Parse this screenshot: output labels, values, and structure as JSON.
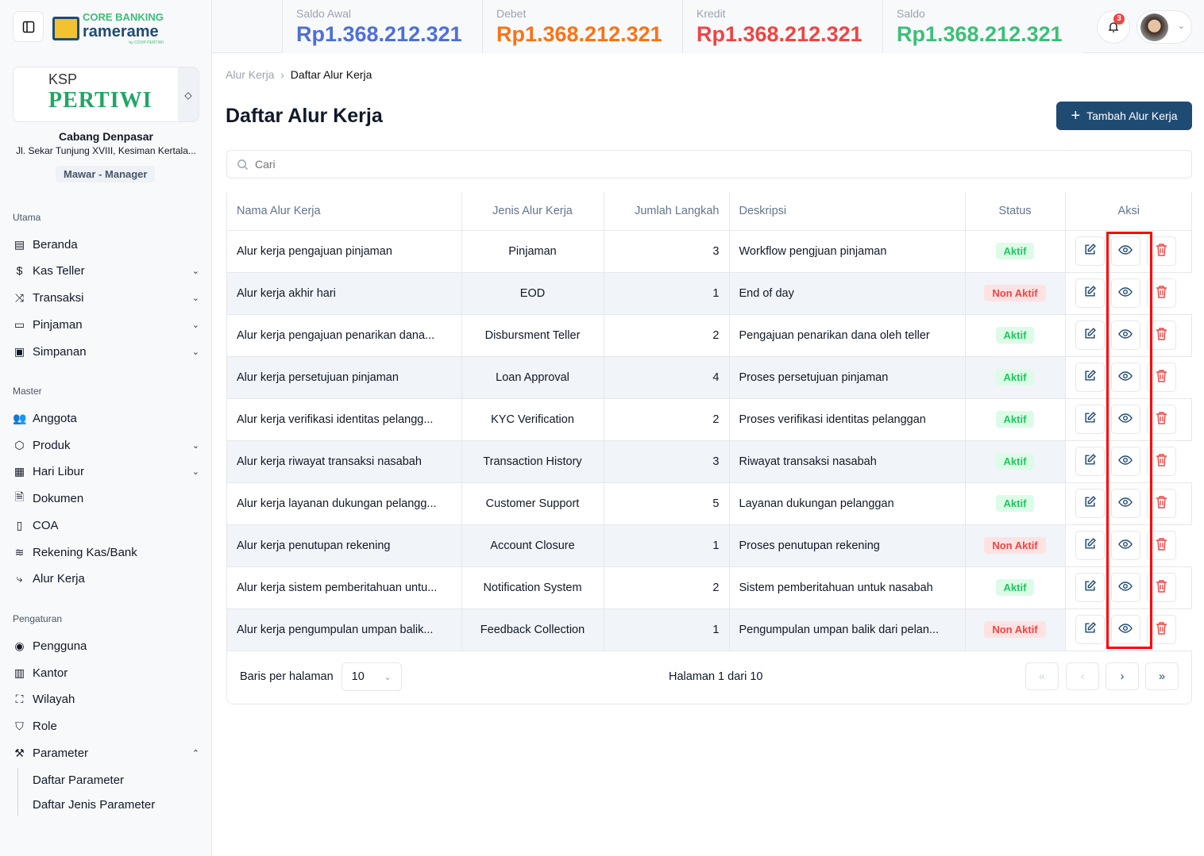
{
  "app": {
    "logo_line1": "CORE BANKING",
    "logo_line2": "ramerame",
    "logo_line3": "by COOP PERTIWI"
  },
  "org": {
    "ksp": "KSP",
    "name": "PERTIWI",
    "branch": "Cabang Denpasar",
    "address": "Jl. Sekar Tunjung XVIII, Kesiman Kertala...",
    "user_role": "Mawar - Manager"
  },
  "sidebar": {
    "sections": [
      "Utama",
      "Master",
      "Pengaturan"
    ],
    "items": [
      {
        "label": "Beranda",
        "icon": "layout-icon"
      },
      {
        "label": "Kas Teller",
        "icon": "dollar-icon"
      },
      {
        "label": "Transaksi",
        "icon": "shuffle-icon"
      },
      {
        "label": "Pinjaman",
        "icon": "card-icon"
      },
      {
        "label": "Simpanan",
        "icon": "archive-icon"
      },
      {
        "label": "Anggota",
        "icon": "users-icon"
      },
      {
        "label": "Produk",
        "icon": "package-icon"
      },
      {
        "label": "Hari Libur",
        "icon": "calendar-icon"
      },
      {
        "label": "Dokumen",
        "icon": "file-icon"
      },
      {
        "label": "COA",
        "icon": "book-icon"
      },
      {
        "label": "Rekening Kas/Bank",
        "icon": "layers-icon"
      },
      {
        "label": "Alur Kerja",
        "icon": "workflow-icon"
      },
      {
        "label": "Pengguna",
        "icon": "user-circle-icon"
      },
      {
        "label": "Kantor",
        "icon": "building-icon"
      },
      {
        "label": "Wilayah",
        "icon": "map-icon"
      },
      {
        "label": "Role",
        "icon": "shield-icon"
      },
      {
        "label": "Parameter",
        "icon": "wrench-icon"
      }
    ],
    "subitems": [
      "Daftar Parameter",
      "Daftar Jenis Parameter"
    ]
  },
  "stats": [
    {
      "label": "Saldo Awal",
      "value": "Rp1.368.212.321",
      "color": "#4f6fd8"
    },
    {
      "label": "Debet",
      "value": "Rp1.368.212.321",
      "color": "#f97316"
    },
    {
      "label": "Kredit",
      "value": "Rp1.368.212.321",
      "color": "#ef4444"
    },
    {
      "label": "Saldo",
      "value": "Rp1.368.212.321",
      "color": "#3cbf78"
    }
  ],
  "notifications": {
    "count": "3"
  },
  "breadcrumb": {
    "parent": "Alur Kerja",
    "current": "Daftar Alur Kerja"
  },
  "page": {
    "title": "Daftar Alur Kerja",
    "add_label": "Tambah Alur Kerja",
    "search_placeholder": "Cari"
  },
  "table": {
    "headers": [
      "Nama Alur Kerja",
      "Jenis Alur Kerja",
      "Jumlah Langkah",
      "Deskripsi",
      "Status",
      "Aksi"
    ],
    "rows": [
      [
        "Alur kerja pengajuan pinjaman",
        "Pinjaman",
        "3",
        "Workflow pengjuan pinjaman",
        "Aktif"
      ],
      [
        "Alur kerja akhir hari",
        "EOD",
        "1",
        "End of day",
        "Non Aktif"
      ],
      [
        "Alur kerja pengajuan penarikan dana...",
        "Disbursment Teller",
        "2",
        "Pengajuan penarikan dana  oleh teller",
        "Aktif"
      ],
      [
        "Alur kerja persetujuan pinjaman",
        "Loan Approval",
        "4",
        "Proses persetujuan pinjaman",
        "Aktif"
      ],
      [
        "Alur kerja verifikasi identitas pelangg...",
        "KYC Verification",
        "2",
        "Proses verifikasi identitas pelanggan",
        "Aktif"
      ],
      [
        "Alur kerja riwayat transaksi nasabah",
        "Transaction History",
        "3",
        "Riwayat transaksi nasabah",
        "Aktif"
      ],
      [
        "Alur kerja layanan dukungan pelangg...",
        "Customer Support",
        "5",
        "Layanan dukungan pelanggan",
        "Aktif"
      ],
      [
        "Alur kerja penutupan rekening",
        "Account Closure",
        "1",
        "Proses penutupan rekening",
        "Non Aktif"
      ],
      [
        "Alur kerja sistem pemberitahuan untu...",
        "Notification System",
        "2",
        "Sistem pemberitahuan untuk nasabah",
        "Aktif"
      ],
      [
        "Alur kerja pengumpulan umpan balik...",
        "Feedback Collection",
        "1",
        "Pengumpulan umpan balik dari pelan...",
        "Non Aktif"
      ]
    ]
  },
  "pagination": {
    "rows_label": "Baris per halaman",
    "rows_value": "10",
    "page_info": "Halaman 1 dari 10"
  }
}
